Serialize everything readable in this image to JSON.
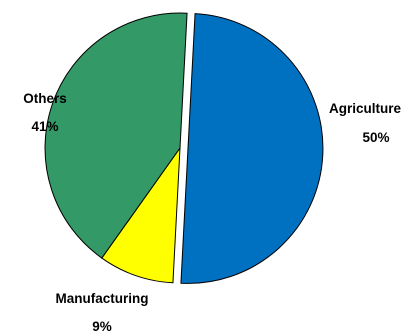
{
  "chart_data": {
    "type": "pie",
    "title": "",
    "slices": [
      {
        "label": "Agriculture",
        "percent_label": "50%",
        "value": 50,
        "color": "#0070C0",
        "exploded": true
      },
      {
        "label": "Manufacturing",
        "percent_label": "9%",
        "value": 9,
        "color": "#FFFF00",
        "exploded": false
      },
      {
        "label": "Others",
        "percent_label": "41%",
        "value": 41,
        "color": "#339966",
        "exploded": false
      }
    ],
    "start_angle_clockwise_from_top": 0,
    "direction": "clockwise",
    "legend": "none",
    "label_style": "category name and percent outside"
  }
}
